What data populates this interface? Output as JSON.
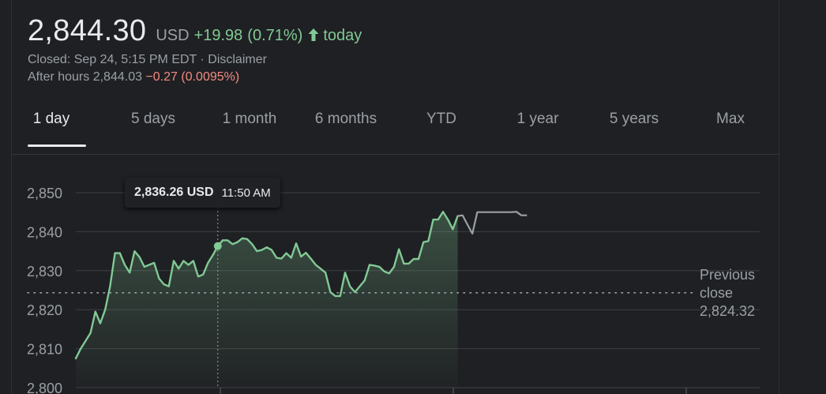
{
  "header": {
    "price": "2,844.30",
    "currency": "USD",
    "change": "+19.98",
    "change_pct": "(0.71%)",
    "change_period": "today",
    "closed_label": "Closed: Sep 24, 5:15 PM EDT · Disclaimer",
    "after_hours_label": "After hours 2,844.03",
    "after_hours_change": "−0.27 (0.0095%)"
  },
  "tabs": [
    {
      "label": "1 day",
      "active": true
    },
    {
      "label": "5 days",
      "active": false
    },
    {
      "label": "1 month",
      "active": false
    },
    {
      "label": "6 months",
      "active": false
    },
    {
      "label": "YTD",
      "active": false
    },
    {
      "label": "1 year",
      "active": false
    },
    {
      "label": "5 years",
      "active": false
    },
    {
      "label": "Max",
      "active": false
    }
  ],
  "tooltip": {
    "price": "2,836.26 USD",
    "time": "11:50 AM"
  },
  "previous_close": {
    "label_line1": "Previous",
    "label_line2": "close",
    "value": "2,824.32"
  },
  "colors": {
    "up": "#81c995",
    "down": "#f28b82",
    "after_hours_line": "#9aa0a6",
    "grid": "#3c4043"
  },
  "chart_data": {
    "type": "line",
    "ylim": [
      2800,
      2850
    ],
    "yticks": [
      2850,
      2840,
      2830,
      2820,
      2810,
      2800
    ],
    "ytick_labels": [
      "2,850",
      "2,840",
      "2,830",
      "2,820",
      "2,810",
      "2,800"
    ],
    "previous_close": 2824.32,
    "grid": true,
    "series": [
      {
        "segment": "regular",
        "values": [
          2807.5,
          2810,
          2812,
          2814,
          2819.5,
          2816.5,
          2820,
          2826,
          2834.5,
          2834.5,
          2831.5,
          2829.5,
          2835,
          2833.5,
          2831,
          2831.5,
          2832,
          2828,
          2826.5,
          2826,
          2832.5,
          2830.5,
          2832.5,
          2831.5,
          2832.5,
          2828.5,
          2829,
          2832,
          2834,
          2836.3,
          2837.8,
          2837.8,
          2836.8,
          2837.3,
          2838.3,
          2838.1,
          2836.8,
          2835,
          2835.3,
          2836,
          2835.3,
          2833.3,
          2833.1,
          2834.5,
          2833.3,
          2837,
          2833.6,
          2834.6,
          2833.1,
          2831.5,
          2830.5,
          2829.5,
          2824.5,
          2823.5,
          2823.5,
          2829.5,
          2826,
          2824.5,
          2826,
          2827.5,
          2831.5,
          2831.3,
          2831,
          2829.8,
          2829.3,
          2831,
          2835.5,
          2831.8,
          2831.8,
          2833,
          2833,
          2837.3,
          2837.6,
          2843.1,
          2843.1,
          2845.1,
          2843.1,
          2840.6,
          2844
        ]
      },
      {
        "segment": "after-hours",
        "values": [
          2844,
          2844.2,
          2841.8,
          2839.5,
          2845,
          2845,
          2845,
          2845,
          2845,
          2845,
          2845,
          2845,
          2845.1,
          2844.2,
          2844.2
        ]
      }
    ],
    "hover_index": 29
  }
}
